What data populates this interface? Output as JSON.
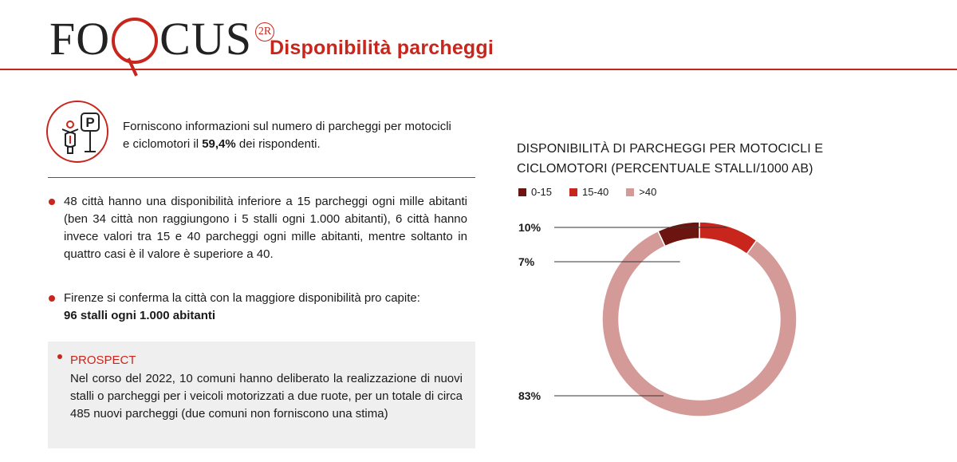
{
  "header": {
    "logo_left": "FO",
    "logo_right": "CUS",
    "logo_badge": "2R",
    "title": "Disponibilità parcheggi"
  },
  "intro": {
    "icon": "motorbike-parking-icon",
    "text_before": "Forniscono informazioni sul numero di parcheggi per motocicli e ciclomotori il ",
    "text_bold": "59,4%",
    "text_after": " dei rispondenti."
  },
  "bullets": {
    "b1": "48 città hanno una disponibilità inferiore a 15 parcheggi ogni mille abitanti (ben 34 città non raggiungono i 5 stalli ogni 1.000 abitanti), 6 città hanno invece valori tra 15 e 40 parcheggi ogni mille abitanti, mentre soltanto in quattro casi è il valore è superiore a 40.",
    "b2_text": "Firenze si conferma la città con la maggiore disponibilità pro capite:",
    "b2_bold": "96 stalli ogni 1.000 abitanti"
  },
  "prospect": {
    "title": "PROSPECT",
    "text": "Nel corso del 2022, 10 comuni hanno deliberato la realizzazione di nuovi stalli o parcheggi per i veicoli motorizzati a due ruote, per un totale di circa 485 nuovi parcheggi (due comuni non forniscono una stima)"
  },
  "chart_data": {
    "type": "pie",
    "donut": true,
    "title": "DISPONIBILITÀ DI PARCHEGGI PER MOTOCICLI E CICLOMOTORI (PERCENTUALE STALLI/1000 AB)",
    "legend_position": "top-left",
    "categories": [
      "0-15",
      "15-40",
      ">40"
    ],
    "values": [
      7,
      10,
      83
    ],
    "labels": [
      "7%",
      "10%",
      "83%"
    ],
    "colors": [
      "#6b1410",
      "#c8261c",
      "#d49a98"
    ]
  }
}
